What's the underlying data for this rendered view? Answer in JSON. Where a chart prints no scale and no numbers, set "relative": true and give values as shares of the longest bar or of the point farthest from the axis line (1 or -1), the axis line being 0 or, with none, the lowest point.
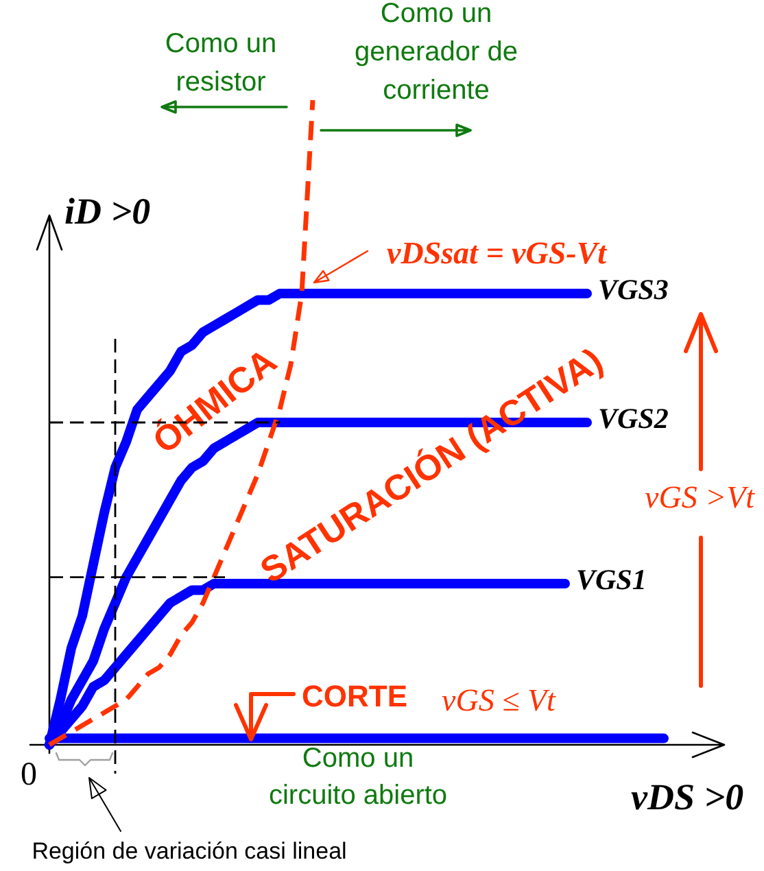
{
  "chart_data": {
    "type": "line",
    "relative": true,
    "line_style": "solid",
    "xlabel": "vDS >0",
    "ylabel": "iD >0",
    "categories": [
      null,
      null,
      null,
      null,
      null,
      null,
      null,
      null,
      null,
      null,
      null,
      null,
      null,
      null,
      null,
      null,
      null,
      null,
      null,
      null,
      null,
      null,
      null,
      null,
      null,
      null,
      null,
      null,
      null,
      null,
      null,
      null,
      null,
      null,
      null,
      null,
      null,
      null,
      null,
      null,
      null,
      null,
      null,
      null,
      null,
      null,
      null,
      null,
      null,
      null,
      null,
      null,
      null,
      null,
      null,
      null,
      null
    ],
    "series": [
      {
        "color": "#000000",
        "line_style": "dashed",
        "values": [
          0.5,
          0.5,
          0.5,
          0.5,
          0.5,
          0.5,
          0.5,
          0.5,
          0.5,
          0.5,
          0.5,
          0.5,
          0.5,
          0.5,
          0.5,
          0.5,
          0.5,
          0.5,
          0.5,
          0.5,
          0.5,
          0.5,
          null,
          null,
          null,
          null,
          null,
          null,
          null,
          null,
          null,
          null,
          null,
          null,
          null,
          null,
          null,
          null,
          null,
          null,
          null,
          null,
          null,
          null,
          null,
          null,
          null,
          null,
          null,
          null,
          null,
          null,
          null,
          null,
          null,
          null,
          null
        ]
      },
      {
        "color": "#000000",
        "line_style": "dashed",
        "values": [
          0.26,
          0.26,
          0.26,
          0.26,
          0.26,
          0.26,
          0.26,
          0.26,
          0.26,
          0.26,
          0.26,
          0.26,
          0.26,
          0.26,
          0.26,
          0.26,
          0.26,
          null,
          null,
          null,
          null,
          null,
          null,
          null,
          null,
          null,
          null,
          null,
          null,
          null,
          null,
          null,
          null,
          null,
          null,
          null,
          null,
          null,
          null,
          null,
          null,
          null,
          null,
          null,
          null,
          null,
          null,
          null,
          null,
          null,
          null,
          null,
          null,
          null,
          null,
          null,
          null
        ]
      },
      {
        "name": "VGS3",
        "color": "#0000ff",
        "values": [
          0,
          0.07,
          0.15,
          0.2,
          0.28,
          0.36,
          0.43,
          0.47,
          0.52,
          0.54,
          0.56,
          0.58,
          0.61,
          0.62,
          0.64,
          0.65,
          0.66,
          0.67,
          0.68,
          0.69,
          0.69,
          0.7,
          0.7,
          0.7,
          0.7,
          0.7,
          0.7,
          0.7,
          0.7,
          0.7,
          0.7,
          0.7,
          0.7,
          0.7,
          0.7,
          0.7,
          0.7,
          0.7,
          0.7,
          0.7,
          0.7,
          0.7,
          0.7,
          0.7,
          0.7,
          0.7,
          0.7,
          0.7,
          0.7,
          0.7,
          null,
          null,
          null,
          null,
          null,
          null,
          null
        ]
      },
      {
        "name": "VGS2",
        "color": "#0000ff",
        "values": [
          0,
          0.03,
          0.07,
          0.1,
          0.13,
          0.18,
          0.22,
          0.26,
          0.29,
          0.32,
          0.35,
          0.38,
          0.41,
          0.43,
          0.44,
          0.46,
          0.47,
          0.48,
          0.49,
          0.5,
          0.5,
          0.5,
          0.5,
          0.5,
          0.5,
          0.5,
          0.5,
          0.5,
          0.5,
          0.5,
          0.5,
          0.5,
          0.5,
          0.5,
          0.5,
          0.5,
          0.5,
          0.5,
          0.5,
          0.5,
          0.5,
          0.5,
          0.5,
          0.5,
          0.5,
          0.5,
          0.5,
          0.5,
          0.5,
          0.5,
          null,
          null,
          null,
          null,
          null,
          null,
          null
        ]
      },
      {
        "name": "VGS1",
        "color": "#0000ff",
        "values": [
          0,
          0.02,
          0.04,
          0.06,
          0.09,
          0.1,
          0.12,
          0.14,
          0.16,
          0.18,
          0.2,
          0.22,
          0.23,
          0.24,
          0.24,
          0.25,
          0.25,
          0.25,
          0.25,
          0.25,
          0.25,
          0.25,
          0.25,
          0.25,
          0.25,
          0.25,
          0.25,
          0.25,
          0.25,
          0.25,
          0.25,
          0.25,
          0.25,
          0.25,
          0.25,
          0.25,
          0.25,
          0.25,
          0.25,
          0.25,
          0.25,
          0.25,
          0.25,
          0.25,
          0.25,
          0.25,
          0.25,
          0.25,
          null,
          null,
          null,
          null,
          null,
          null,
          null,
          null,
          null
        ]
      },
      {
        "color": "#0000ff",
        "values": [
          0.01,
          0.01,
          0.01,
          0.01,
          0.01,
          0.01,
          0.01,
          0.01,
          0.01,
          0.01,
          0.01,
          0.01,
          0.01,
          0.01,
          0.01,
          0.01,
          0.01,
          0.01,
          0.01,
          0.01,
          0.01,
          0.01,
          0.01,
          0.01,
          0.01,
          0.01,
          0.01,
          0.01,
          0.01,
          0.01,
          0.01,
          0.01,
          0.01,
          0.01,
          0.01,
          0.01,
          0.01,
          0.01,
          0.01,
          0.01,
          0.01,
          0.01,
          0.01,
          0.01,
          0.01,
          0.01,
          0.01,
          0.01,
          0.01,
          0.01,
          0.01,
          0.01,
          0.01,
          0.01,
          0.01,
          0.01,
          0.01
        ]
      },
      {
        "color": "#ff3300",
        "line_style": "dashed",
        "values": [
          0,
          0.01,
          0.02,
          0.03,
          0.04,
          0.05,
          0.06,
          0.07,
          0.09,
          0.11,
          0.12,
          0.14,
          0.17,
          0.19,
          0.22,
          0.26,
          0.3,
          0.34,
          0.38,
          0.42,
          0.47,
          0.52,
          0.59,
          0.7,
          1,
          null,
          null,
          null,
          null,
          null,
          null,
          null,
          null,
          null,
          null,
          null,
          null,
          null,
          null,
          null,
          null,
          null,
          null,
          null,
          null,
          null,
          null,
          null,
          null,
          null,
          null,
          null,
          null,
          null,
          null,
          null,
          null
        ]
      }
    ],
    "annotations": [
      "Como un\nresistor",
      "Como un\ngenerador de\ncorriente",
      "vDSsat = vGS-Vt",
      "ÓHMICA",
      "SATURACIÓN (ACTIVA)",
      "CORTE",
      "vGS ≤ Vt",
      "vGS >Vt",
      "Como un\ncircuito abierto",
      "Región de variación casi lineal",
      "0"
    ]
  }
}
